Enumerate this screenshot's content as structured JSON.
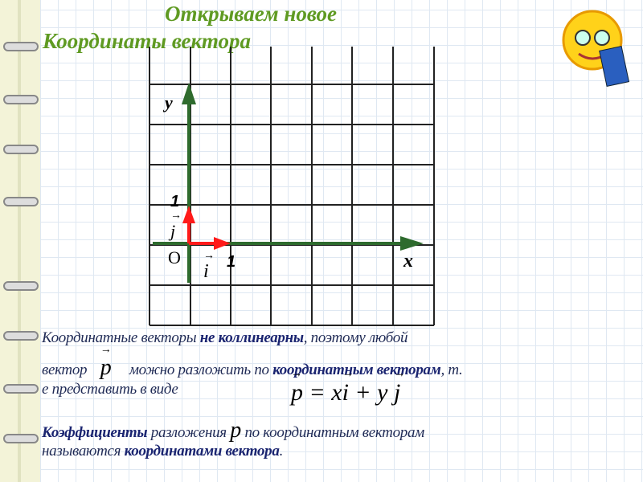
{
  "title_line1": "Открываем новое",
  "title_line2": "Координаты вектора",
  "axes": {
    "y": "y",
    "x": "x",
    "origin": "O",
    "one_x": "1",
    "one_y": "1",
    "i": "i",
    "j": "j"
  },
  "text": {
    "p1a": "Координатные векторы ",
    "p1b": "не коллинеарны",
    "p1c": ", поэтому любой",
    "p2a": "вектор ",
    "p2v": "p",
    "p2b": " можно разложить по ",
    "p2c": "координатным векторам",
    "p2d": ", т.",
    "p3": "е представить в виде",
    "formula": {
      "p": "p",
      "eq": " = x",
      "i": "i",
      "plus": " + y ",
      "j": "j"
    },
    "p4a": "Коэффициенты",
    "p4b": " разложения ",
    "p4v": "p",
    "p4c": " по координатным векторам",
    "p5a": "называются ",
    "p5b": "координатами вектора",
    "p5c": "."
  },
  "colors": {
    "title": "#5f9a22",
    "axis": "#2e6b2e",
    "unit": "#ff1a1a",
    "text": "#1f2a55"
  }
}
